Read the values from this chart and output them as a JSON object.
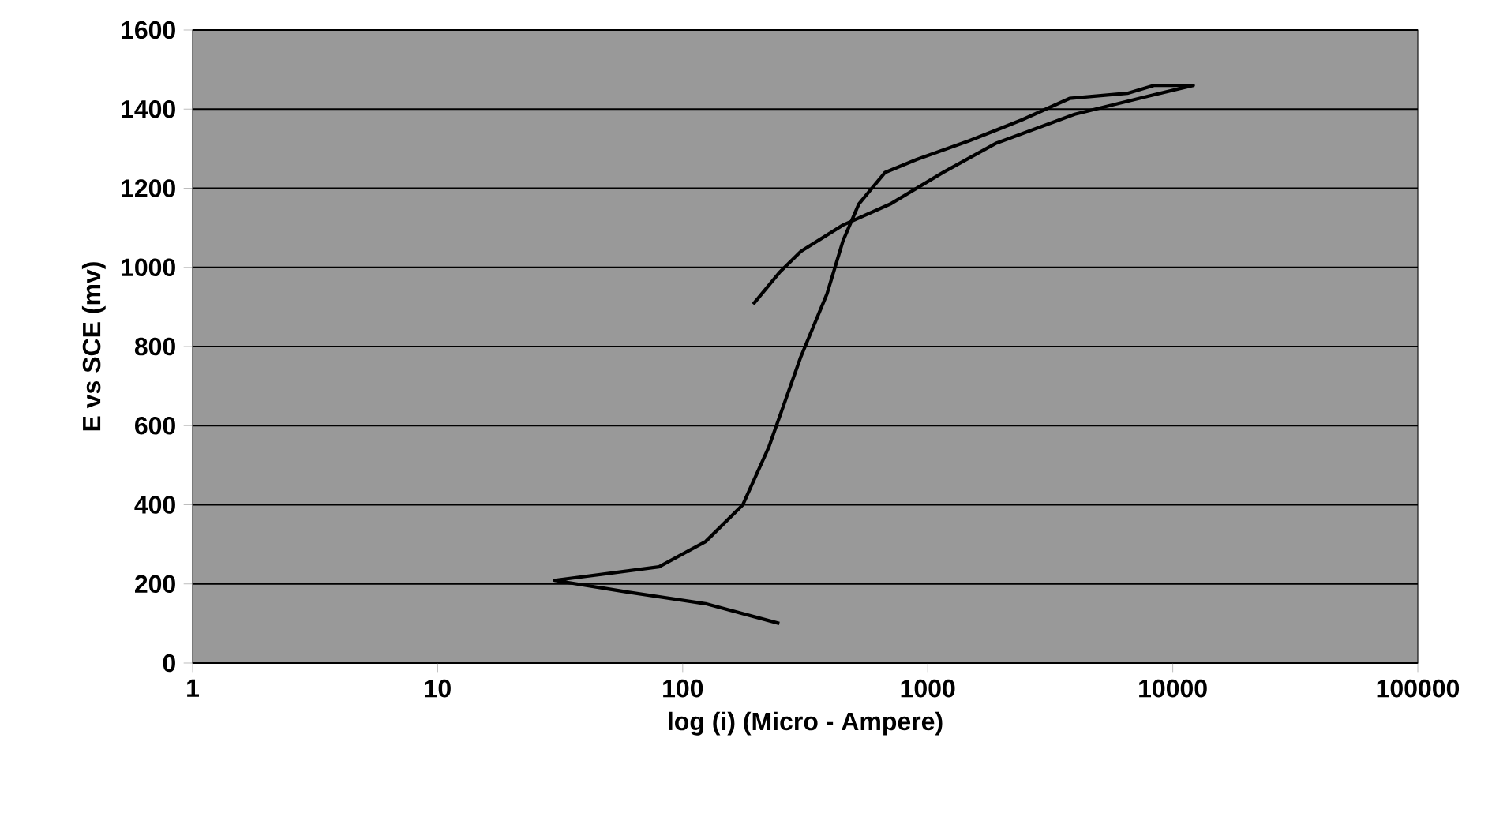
{
  "chart_data": {
    "type": "line",
    "xlabel": "log (i) (Micro - Ampere)",
    "ylabel": "E vs SCE (mv)",
    "log": "x",
    "xlim": [
      1,
      100000
    ],
    "xticks": [
      1,
      10,
      100,
      1000,
      10000,
      100000
    ],
    "ylim": [
      0,
      1600
    ],
    "yticks": [
      0,
      200,
      400,
      600,
      800,
      1000,
      1200,
      1400,
      1600
    ],
    "grid": "y",
    "marker": "none",
    "line_style": "solid",
    "series": [
      {
        "color": "#000000",
        "x": [
          248,
          124,
          59,
          30,
          80,
          124,
          176,
          225,
          303,
          388,
          451,
          523,
          670,
          902,
          1479,
          2427,
          3790,
          6530,
          8370,
          12130,
          7960,
          3980,
          1890,
          1156,
          703,
          451,
          303,
          248,
          194
        ],
        "values": [
          100,
          150,
          180,
          209,
          243,
          307,
          400,
          547,
          773,
          933,
          1067,
          1160,
          1240,
          1273,
          1320,
          1373,
          1427,
          1440,
          1460,
          1460,
          1433,
          1387,
          1313,
          1240,
          1160,
          1107,
          1040,
          987,
          907
        ]
      }
    ]
  }
}
